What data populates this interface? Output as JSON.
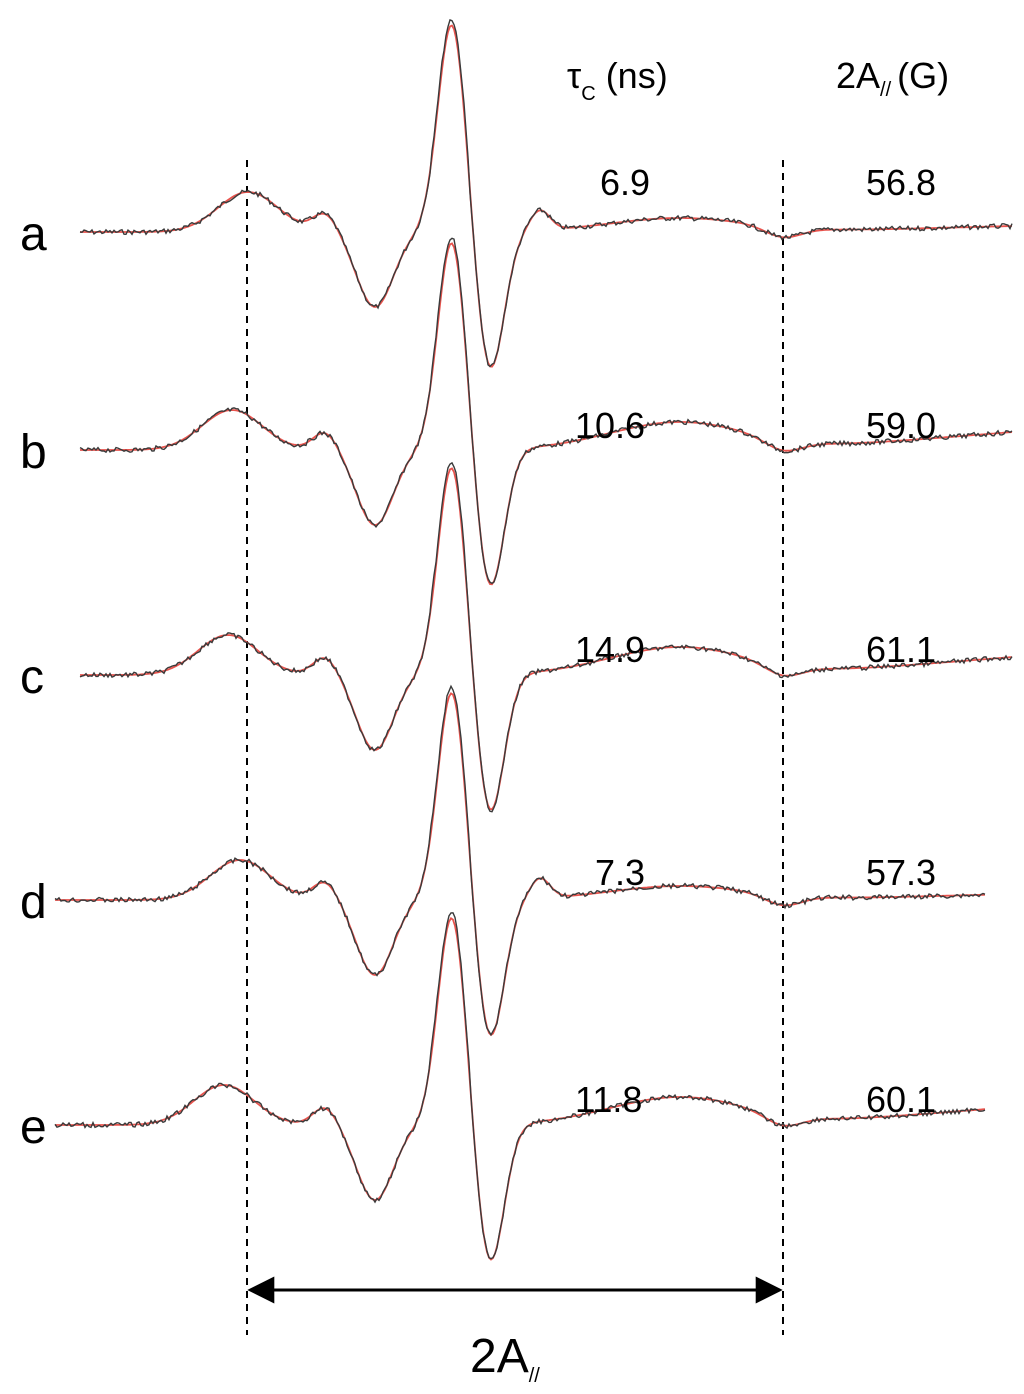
{
  "chart_data": {
    "type": "line",
    "header": {
      "tau_symbol": "τ",
      "tau_sub": "C",
      "tau_unit": "(ns)",
      "a_prefix": "2A",
      "a_sub": "//",
      "a_unit": "(G)"
    },
    "span": {
      "prefix": "2A",
      "sub": "//"
    },
    "series_colors": {
      "experimental": "#3a3a3a",
      "simulated": "#e8534d"
    },
    "spectra": [
      {
        "label": "a",
        "tau_c": "6.9",
        "two_a_par": "56.8",
        "kind": "narrow"
      },
      {
        "label": "b",
        "tau_c": "10.6",
        "two_a_par": "59.0",
        "kind": "broad"
      },
      {
        "label": "c",
        "tau_c": "14.9",
        "two_a_par": "61.1",
        "kind": "broad"
      },
      {
        "label": "d",
        "tau_c": "7.3",
        "two_a_par": "57.3",
        "kind": "narrow"
      },
      {
        "label": "e",
        "tau_c": "11.8",
        "two_a_par": "60.1",
        "kind": "broad"
      }
    ]
  }
}
